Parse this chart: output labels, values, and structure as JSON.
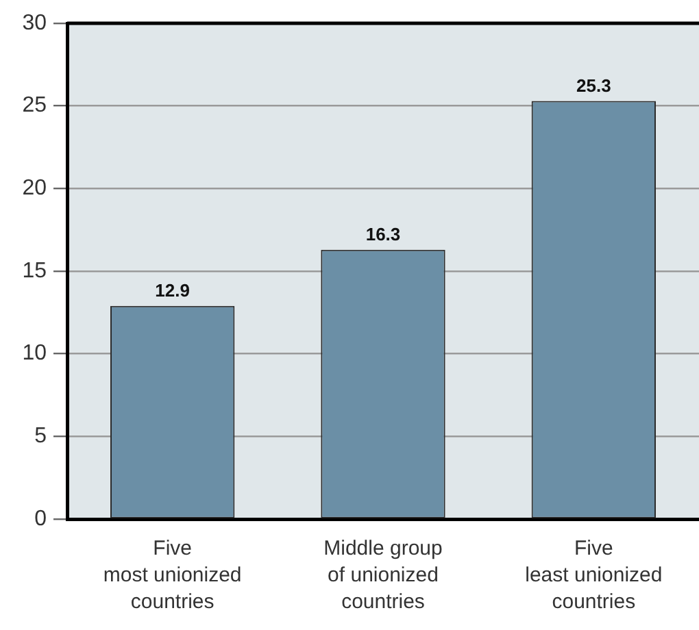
{
  "chart_data": {
    "type": "bar",
    "categories": [
      "Five\nmost unionized\ncountries",
      "Middle group\nof unionized\ncountries",
      "Five\nleast unionized\ncountries"
    ],
    "values": [
      12.9,
      16.3,
      25.3
    ],
    "color": "#6b8fa6",
    "ylim": [
      0,
      30
    ],
    "yticks": [
      0,
      5,
      10,
      15,
      20,
      25,
      30
    ],
    "grid": "y",
    "data_labels": true,
    "legend": false
  }
}
